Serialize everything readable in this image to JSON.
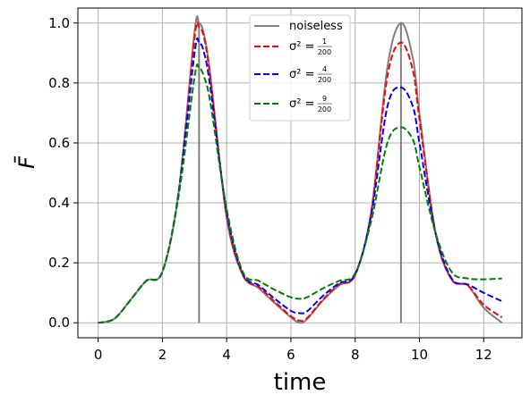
{
  "chart_data": {
    "type": "line",
    "xlabel": "time",
    "ylabel": "F̄",
    "xlim": [
      -0.63,
      13.19
    ],
    "ylim": [
      -0.05,
      1.05
    ],
    "xticks": [
      0,
      2,
      4,
      6,
      8,
      10,
      12
    ],
    "yticks": [
      0.0,
      0.2,
      0.4,
      0.6,
      0.8,
      1.0
    ],
    "grid": true,
    "legend_placement": "top-center",
    "vertical_lines": [
      {
        "x": 3.1416,
        "y_from": 0.0,
        "y_to": 1.0,
        "color": "#808080"
      },
      {
        "x": 9.4248,
        "y_from": 0.0,
        "y_to": 1.0,
        "color": "#808080"
      }
    ],
    "series": [
      {
        "name": "noiseless",
        "color": "#808080",
        "dash": "solid",
        "x": [
          0,
          0.5,
          1.0,
          1.5,
          2.0,
          2.5,
          3.0,
          3.1416,
          3.3,
          3.5,
          4.0,
          4.5,
          5.0,
          5.5,
          6.0,
          6.28,
          6.5,
          7.0,
          7.5,
          8.0,
          8.5,
          9.0,
          9.4248,
          9.8,
          10.0,
          10.5,
          11.0,
          11.5,
          12.0,
          12.57
        ],
        "values": [
          0.0,
          0.013,
          0.075,
          0.14,
          0.17,
          0.43,
          0.97,
          1.0,
          0.96,
          0.82,
          0.35,
          0.16,
          0.115,
          0.065,
          0.018,
          0.0,
          0.012,
          0.075,
          0.125,
          0.16,
          0.37,
          0.85,
          1.0,
          0.88,
          0.7,
          0.3,
          0.145,
          0.125,
          0.05,
          0.0
        ]
      },
      {
        "name": "σ² = 1/200",
        "label_prefix": "σ² =",
        "label_num": "1",
        "label_den": "200",
        "color": "#ff0000",
        "dash": "dashed",
        "x": [
          0,
          0.5,
          1.0,
          1.5,
          2.0,
          2.5,
          3.0,
          3.1416,
          3.3,
          3.5,
          4.0,
          4.5,
          5.0,
          5.5,
          6.0,
          6.28,
          6.5,
          7.0,
          7.5,
          8.0,
          8.5,
          9.0,
          9.4248,
          9.8,
          10.0,
          10.5,
          11.0,
          11.5,
          12.0,
          12.57
        ],
        "values": [
          0.0,
          0.013,
          0.075,
          0.14,
          0.17,
          0.43,
          0.95,
          0.985,
          0.95,
          0.81,
          0.36,
          0.16,
          0.12,
          0.07,
          0.022,
          0.007,
          0.015,
          0.078,
          0.128,
          0.16,
          0.37,
          0.82,
          0.935,
          0.84,
          0.68,
          0.3,
          0.145,
          0.125,
          0.06,
          0.018
        ]
      },
      {
        "name": "σ² = 4/200",
        "label_prefix": "σ² =",
        "label_num": "4",
        "label_den": "200",
        "color": "#0000ff",
        "dash": "dashed",
        "x": [
          0,
          0.5,
          1.0,
          1.5,
          2.0,
          2.5,
          3.0,
          3.1416,
          3.3,
          3.5,
          4.0,
          4.5,
          5.0,
          5.5,
          6.0,
          6.28,
          6.5,
          7.0,
          7.5,
          8.0,
          8.5,
          9.0,
          9.4248,
          9.8,
          10.0,
          10.5,
          11.0,
          11.5,
          12.0,
          12.57
        ],
        "values": [
          0.0,
          0.013,
          0.075,
          0.14,
          0.17,
          0.43,
          0.9,
          0.935,
          0.9,
          0.78,
          0.37,
          0.165,
          0.125,
          0.08,
          0.04,
          0.032,
          0.038,
          0.09,
          0.132,
          0.162,
          0.36,
          0.72,
          0.785,
          0.72,
          0.6,
          0.3,
          0.148,
          0.128,
          0.1,
          0.072
        ]
      },
      {
        "name": "σ² = 9/200",
        "label_prefix": "σ² =",
        "label_num": "9",
        "label_den": "200",
        "color": "#008000",
        "dash": "dashed",
        "x": [
          0,
          0.5,
          1.0,
          1.5,
          2.0,
          2.5,
          3.0,
          3.1416,
          3.3,
          3.5,
          4.0,
          4.5,
          5.0,
          5.5,
          6.0,
          6.28,
          6.5,
          7.0,
          7.5,
          8.0,
          8.5,
          9.0,
          9.4248,
          9.8,
          10.0,
          10.5,
          11.0,
          11.5,
          12.0,
          12.57
        ],
        "values": [
          0.0,
          0.013,
          0.075,
          0.14,
          0.17,
          0.42,
          0.82,
          0.85,
          0.82,
          0.73,
          0.38,
          0.17,
          0.14,
          0.11,
          0.085,
          0.08,
          0.085,
          0.115,
          0.14,
          0.165,
          0.34,
          0.6,
          0.652,
          0.61,
          0.52,
          0.3,
          0.17,
          0.148,
          0.145,
          0.148
        ]
      }
    ]
  }
}
